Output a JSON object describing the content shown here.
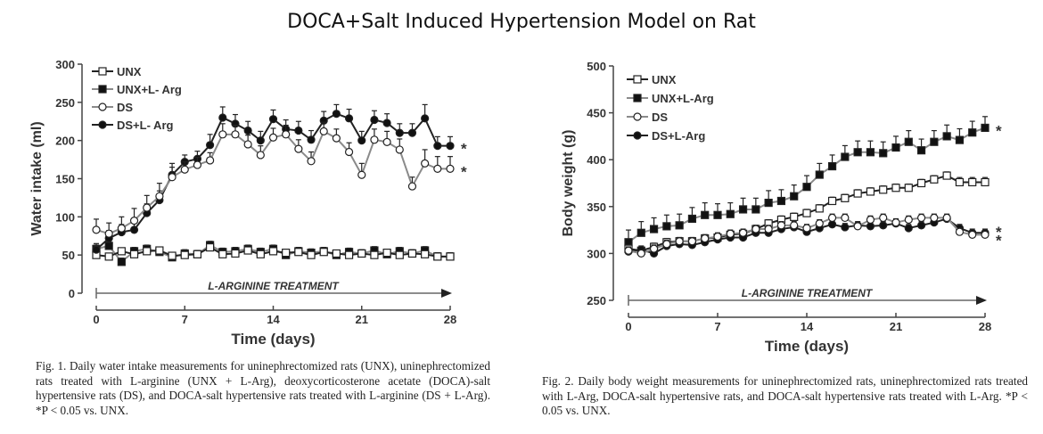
{
  "title": "DOCA+Salt Induced Hypertension Model on Rat",
  "chart_data": [
    {
      "type": "line",
      "title": "",
      "xlabel": "Time (days)",
      "ylabel": "Water intake (ml)",
      "xlim": [
        0,
        28
      ],
      "ylim": [
        0,
        300
      ],
      "xticks": [
        0,
        7,
        14,
        21,
        28
      ],
      "yticks": [
        0,
        50,
        100,
        150,
        200,
        250,
        300
      ],
      "grid": false,
      "legend_position": "top-left",
      "annotation": "L-ARGININE TREATMENT",
      "significance_marks": [
        "*",
        "*"
      ],
      "x": [
        0,
        1,
        2,
        3,
        4,
        5,
        6,
        7,
        8,
        9,
        10,
        11,
        12,
        13,
        14,
        15,
        16,
        17,
        18,
        19,
        20,
        21,
        22,
        23,
        24,
        25,
        26,
        27,
        28
      ],
      "series": [
        {
          "name": "UNX",
          "marker": "open-square",
          "line": "black",
          "values": [
            50,
            48,
            55,
            51,
            55,
            56,
            49,
            50,
            51,
            60,
            51,
            52,
            56,
            51,
            55,
            53,
            54,
            50,
            54,
            52,
            50,
            52,
            50,
            53,
            50,
            52,
            51,
            48,
            48
          ]
        },
        {
          "name": "UNX+L- Arg",
          "marker": "filled-square",
          "line": "grey",
          "values": [
            58,
            62,
            41,
            55,
            58,
            54,
            47,
            52,
            51,
            63,
            54,
            55,
            58,
            54,
            58,
            50,
            55,
            53,
            55,
            50,
            54,
            52,
            56,
            51,
            55,
            52,
            56,
            48,
            48
          ]
        },
        {
          "name": "DS",
          "marker": "open-circle",
          "line": "grey",
          "values": [
            83,
            78,
            85,
            95,
            112,
            127,
            152,
            162,
            168,
            174,
            208,
            208,
            195,
            181,
            204,
            208,
            189,
            173,
            212,
            203,
            185,
            155,
            201,
            198,
            188,
            140,
            170,
            163,
            163
          ]
        },
        {
          "name": "DS+L- Arg",
          "marker": "filled-circle",
          "line": "black",
          "values": [
            57,
            72,
            80,
            83,
            105,
            122,
            155,
            172,
            176,
            194,
            230,
            222,
            213,
            200,
            228,
            215,
            213,
            201,
            226,
            235,
            229,
            200,
            227,
            223,
            210,
            210,
            229,
            193,
            193
          ]
        }
      ],
      "errors": {
        "UNX": [
          4,
          4,
          4,
          4,
          4,
          4,
          4,
          4,
          4,
          4,
          4,
          4,
          4,
          4,
          4,
          4,
          4,
          4,
          4,
          4,
          4,
          4,
          4,
          4,
          4,
          4,
          4,
          4,
          4
        ],
        "UNX+L- Arg": [
          5,
          5,
          5,
          5,
          5,
          5,
          5,
          5,
          5,
          5,
          5,
          5,
          5,
          5,
          5,
          5,
          5,
          5,
          5,
          5,
          5,
          5,
          5,
          5,
          5,
          5,
          5,
          5,
          5
        ],
        "DS": [
          14,
          14,
          15,
          16,
          16,
          17,
          18,
          10,
          10,
          10,
          14,
          12,
          12,
          12,
          12,
          12,
          12,
          12,
          12,
          12,
          12,
          15,
          14,
          14,
          14,
          12,
          18,
          16,
          16
        ],
        "DS+L- Arg": [
          8,
          10,
          10,
          12,
          12,
          12,
          10,
          9,
          10,
          14,
          14,
          12,
          12,
          12,
          12,
          12,
          12,
          12,
          12,
          12,
          12,
          12,
          12,
          12,
          12,
          12,
          18,
          12,
          12
        ]
      },
      "caption": {
        "lead": "Fig. 1.",
        "text": "Daily water intake measurements for uninephrectomized rats (UNX), uninephrectomized rats treated with L-arginine (UNX + L-Arg), deoxycorticosterone acetate (DOCA)-salt hypertensive rats (DS), and DOCA-salt hypertensive rats treated with L-arginine (DS + L-Arg). *P < 0.05 vs. UNX."
      }
    },
    {
      "type": "line",
      "title": "",
      "xlabel": "Time (days)",
      "ylabel": "Body weight (g)",
      "xlim": [
        0,
        28
      ],
      "ylim": [
        250,
        500
      ],
      "xticks": [
        0,
        7,
        14,
        21,
        28
      ],
      "yticks": [
        250,
        300,
        350,
        400,
        450,
        500
      ],
      "grid": false,
      "legend_position": "top-left",
      "annotation": "L-ARGININE TREATMENT",
      "significance_marks": [
        "*",
        "*",
        "*"
      ],
      "x": [
        0,
        1,
        2,
        3,
        4,
        5,
        6,
        7,
        8,
        9,
        10,
        11,
        12,
        13,
        14,
        15,
        16,
        17,
        18,
        19,
        20,
        21,
        22,
        23,
        24,
        25,
        26,
        27,
        28
      ],
      "series": [
        {
          "name": "UNX",
          "marker": "open-square",
          "line": "black",
          "values": [
            305,
            303,
            307,
            312,
            313,
            313,
            316,
            317,
            320,
            321,
            326,
            332,
            336,
            339,
            343,
            348,
            356,
            359,
            364,
            366,
            368,
            370,
            370,
            375,
            379,
            383,
            376,
            376,
            376
          ]
        },
        {
          "name": "UNX+L-Arg",
          "marker": "filled-square",
          "line": "grey",
          "values": [
            312,
            322,
            326,
            329,
            330,
            337,
            341,
            341,
            342,
            347,
            347,
            354,
            356,
            361,
            371,
            384,
            393,
            403,
            408,
            408,
            407,
            413,
            419,
            410,
            419,
            425,
            421,
            429,
            434
          ]
        },
        {
          "name": "DS",
          "marker": "open-circle",
          "line": "grey",
          "values": [
            303,
            300,
            305,
            310,
            313,
            313,
            316,
            318,
            321,
            322,
            326,
            326,
            330,
            330,
            327,
            332,
            338,
            338,
            329,
            336,
            338,
            333,
            336,
            338,
            338,
            338,
            323,
            320,
            320
          ]
        },
        {
          "name": "DS+L-Arg",
          "marker": "filled-circle",
          "line": "black",
          "values": [
            302,
            304,
            300,
            308,
            310,
            309,
            312,
            315,
            317,
            317,
            322,
            322,
            326,
            328,
            323,
            327,
            331,
            328,
            330,
            329,
            330,
            332,
            327,
            330,
            333,
            337,
            327,
            322,
            322
          ]
        }
      ],
      "errors": {
        "UNX": [
          4,
          4,
          4,
          4,
          4,
          4,
          4,
          4,
          4,
          4,
          4,
          4,
          4,
          4,
          4,
          4,
          4,
          4,
          4,
          4,
          4,
          4,
          4,
          4,
          4,
          4,
          5,
          5,
          5
        ],
        "UNX+L-Arg": [
          13,
          12,
          12,
          12,
          12,
          12,
          13,
          12,
          12,
          12,
          12,
          13,
          12,
          12,
          12,
          12,
          12,
          12,
          12,
          12,
          12,
          12,
          12,
          12,
          12,
          12,
          12,
          12,
          12
        ],
        "DS": [
          4,
          4,
          4,
          4,
          4,
          4,
          4,
          4,
          4,
          4,
          4,
          4,
          4,
          4,
          4,
          4,
          4,
          4,
          4,
          4,
          4,
          4,
          4,
          4,
          4,
          4,
          4,
          4,
          4
        ],
        "DS+L-Arg": [
          4,
          4,
          4,
          4,
          4,
          4,
          4,
          4,
          4,
          4,
          4,
          4,
          4,
          4,
          4,
          4,
          4,
          4,
          4,
          4,
          4,
          4,
          4,
          4,
          4,
          4,
          4,
          4,
          4
        ]
      },
      "caption": {
        "lead": "Fig. 2.",
        "text": "Daily body weight measurements for uninephrectomized rats, uninephrectomized rats treated with L-Arg, DOCA-salt hypertensive rats, and DOCA-salt hypertensive rats treated with L-Arg. *P < 0.05 vs. UNX."
      }
    }
  ]
}
